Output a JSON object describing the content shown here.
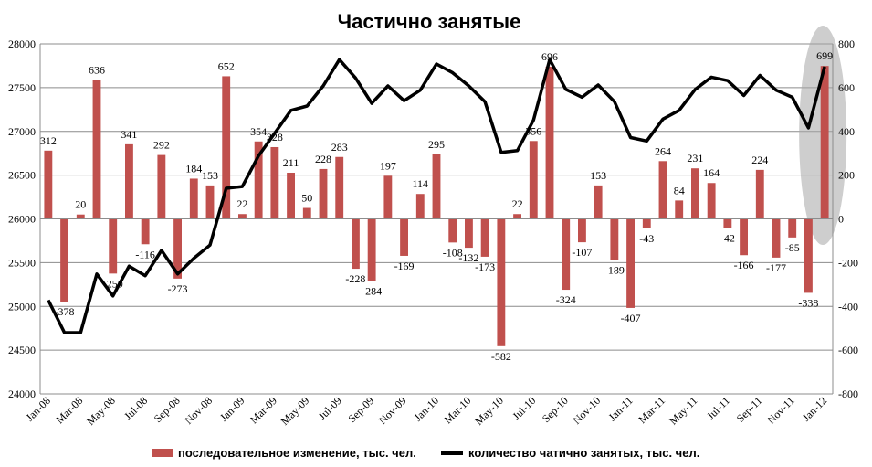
{
  "chart_data": {
    "type": "bar+line",
    "title": "Частично занятые",
    "categories": [
      "Jan-08",
      "Feb-08",
      "Mar-08",
      "Apr-08",
      "May-08",
      "Jun-08",
      "Jul-08",
      "Aug-08",
      "Sep-08",
      "Oct-08",
      "Nov-08",
      "Dec-08",
      "Jan-09",
      "Feb-09",
      "Mar-09",
      "Apr-09",
      "May-09",
      "Jun-09",
      "Jul-09",
      "Aug-09",
      "Sep-09",
      "Oct-09",
      "Nov-09",
      "Dec-09",
      "Jan-10",
      "Feb-10",
      "Mar-10",
      "Apr-10",
      "May-10",
      "Jun-10",
      "Jul-10",
      "Aug-10",
      "Sep-10",
      "Oct-10",
      "Nov-10",
      "Dec-10",
      "Jan-11",
      "Feb-11",
      "Mar-11",
      "Apr-11",
      "May-11",
      "Jun-11",
      "Jul-11",
      "Aug-11",
      "Sep-11",
      "Oct-11",
      "Nov-11",
      "Dec-11",
      "Jan-12"
    ],
    "x_tick_labels": [
      "Jan-08",
      "Mar-08",
      "May-08",
      "Jul-08",
      "Sep-08",
      "Nov-08",
      "Jan-09",
      "Mar-09",
      "May-09",
      "Jul-09",
      "Sep-09",
      "Nov-09",
      "Jan-10",
      "Mar-10",
      "May-10",
      "Jul-10",
      "Sep-10",
      "Nov-10",
      "Jan-11",
      "Mar-11",
      "May-11",
      "Jul-11",
      "Sep-11",
      "Nov-11",
      "Jan-12"
    ],
    "bar_series": {
      "name": "последовательное изменение, тыс. чел.",
      "axis": "right",
      "color": "#c0504d",
      "values": [
        312,
        -378,
        20,
        636,
        -250,
        341,
        -116,
        292,
        -273,
        184,
        153,
        652,
        22,
        354,
        328,
        211,
        50,
        228,
        283,
        -228,
        -284,
        197,
        -169,
        114,
        295,
        -108,
        -132,
        -173,
        -582,
        22,
        356,
        696,
        -324,
        -107,
        153,
        -189,
        -407,
        -43,
        264,
        84,
        231,
        164,
        -42,
        -166,
        224,
        -177,
        -85,
        -338,
        699
      ]
    },
    "line_series": {
      "name": "количество чатично занятых, тыс. чел.",
      "axis": "left",
      "color": "#000000",
      "values": [
        25070,
        24700,
        24700,
        25370,
        25120,
        25460,
        25350,
        25640,
        25370,
        25550,
        25700,
        26350,
        26370,
        26720,
        26980,
        27240,
        27290,
        27520,
        27820,
        27610,
        27320,
        27520,
        27350,
        27470,
        27770,
        27670,
        27520,
        27340,
        26760,
        26780,
        27130,
        27820,
        27480,
        27390,
        27530,
        27340,
        26930,
        26890,
        27140,
        27240,
        27480,
        27620,
        27580,
        27410,
        27640,
        27470,
        27390,
        27040,
        27740
      ]
    },
    "left_axis": {
      "min": 24000,
      "max": 28000,
      "ticks": [
        24000,
        24500,
        25000,
        25500,
        26000,
        26500,
        27000,
        27500,
        28000
      ]
    },
    "right_axis": {
      "min": -800,
      "max": 800,
      "ticks": [
        -800,
        -600,
        -400,
        -200,
        0,
        200,
        400,
        600,
        800
      ]
    },
    "grid": true,
    "legend_position": "bottom",
    "highlight": {
      "category": "Jan-12",
      "shape": "ellipse",
      "color": "#a6a6a6"
    }
  }
}
